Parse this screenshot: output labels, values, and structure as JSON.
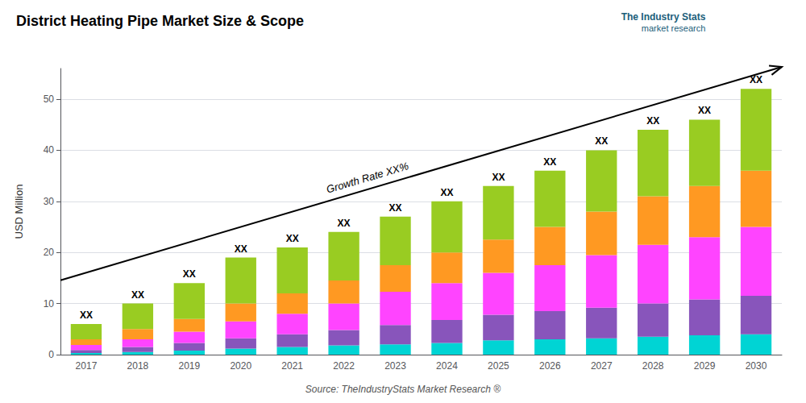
{
  "chart_data": {
    "type": "bar",
    "stacked": true,
    "title": "District Heating Pipe Market Size & Scope",
    "ylabel": "USD Million",
    "source": "Source: TheIndustryStats Market Research ®",
    "brand": "The Industry Stats",
    "brand_tagline": "market research",
    "growth_label": "Growth Rate XX%",
    "categories": [
      "2017",
      "2018",
      "2019",
      "2020",
      "2021",
      "2022",
      "2023",
      "2024",
      "2025",
      "2026",
      "2027",
      "2028",
      "2029",
      "2030"
    ],
    "total_labels": [
      "XX",
      "XX",
      "XX",
      "XX",
      "XX",
      "XX",
      "XX",
      "XX",
      "XX",
      "XX",
      "XX",
      "XX",
      "XX",
      "XX"
    ],
    "series": [
      {
        "color": "#00D4D4",
        "values": [
          0.3,
          0.5,
          0.8,
          1.2,
          1.5,
          1.8,
          2.0,
          2.3,
          2.8,
          3.0,
          3.2,
          3.5,
          3.8,
          4.0
        ]
      },
      {
        "color": "#8855BB",
        "values": [
          0.6,
          1.0,
          1.5,
          2.0,
          2.5,
          3.0,
          3.8,
          4.5,
          5.0,
          5.5,
          6.0,
          6.5,
          7.0,
          7.5
        ]
      },
      {
        "color": "#FF44FF",
        "values": [
          1.0,
          1.5,
          2.2,
          3.3,
          4.0,
          5.2,
          6.5,
          7.2,
          8.2,
          9.0,
          10.3,
          11.5,
          12.2,
          13.5
        ]
      },
      {
        "color": "#FF9922",
        "values": [
          1.1,
          2.0,
          2.5,
          3.5,
          4.0,
          4.5,
          5.2,
          6.0,
          6.5,
          7.5,
          8.5,
          9.5,
          10.0,
          11.0
        ]
      },
      {
        "color": "#99CC22",
        "values": [
          3.0,
          5.0,
          7.0,
          9.0,
          9.0,
          9.5,
          9.5,
          10.0,
          10.5,
          11.0,
          12.0,
          13.0,
          13.0,
          16.0
        ]
      }
    ],
    "ylim": [
      0,
      56
    ],
    "yticks": [
      0,
      10,
      20,
      30,
      40,
      50
    ],
    "grid": true
  }
}
